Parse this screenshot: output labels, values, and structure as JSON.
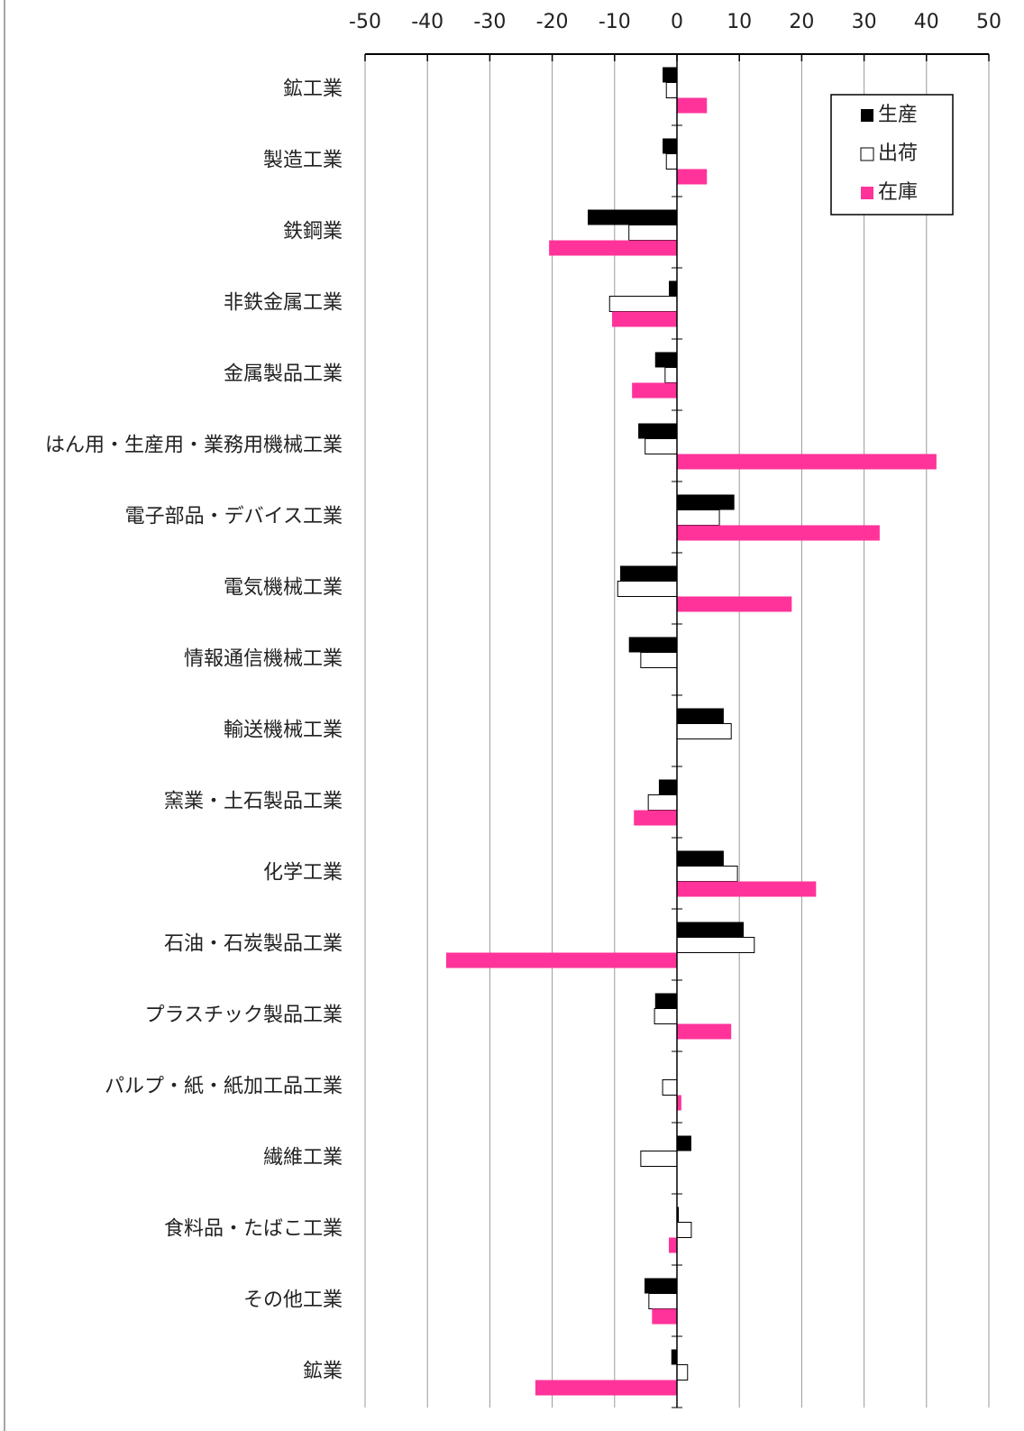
{
  "chart_data": {
    "type": "bar",
    "orientation": "horizontal",
    "categories": [
      "鉱工業",
      "製造工業",
      "鉄鋼業",
      "非鉄金属工業",
      "金属製品工業",
      "はん用・生産用・業務用機械工業",
      "電子部品・デバイス工業",
      "電気機械工業",
      "情報通信機械工業",
      "輸送機械工業",
      "窯業・土石製品工業",
      "化学工業",
      "石油・石炭製品工業",
      "プラスチック製品工業",
      "パルプ・紙・紙加工品工業",
      "繊維工業",
      "食料品・たばこ工業",
      "その他工業",
      "鉱業"
    ],
    "series": [
      {
        "name": "生産",
        "color": "#000000",
        "values": [
          -2.3,
          -2.3,
          -14.3,
          -1.3,
          -3.5,
          -6.2,
          9.2,
          -9.1,
          -7.7,
          7.5,
          -2.9,
          7.5,
          10.7,
          -3.5,
          0,
          2.3,
          0.3,
          -5.2,
          -0.9
        ]
      },
      {
        "name": "出荷",
        "color": "#ffffff",
        "values": [
          -1.7,
          -1.7,
          -7.7,
          -10.8,
          -1.9,
          -5.1,
          6.8,
          -9.5,
          -5.8,
          8.7,
          -4.6,
          9.7,
          12.4,
          -3.6,
          -2.3,
          -5.8,
          2.3,
          -4.5,
          1.7
        ]
      },
      {
        "name": "在庫",
        "color": "#ff3399",
        "values": [
          4.8,
          4.8,
          -20.5,
          -10.4,
          -7.2,
          41.6,
          32.5,
          18.4,
          0,
          0,
          -6.9,
          22.3,
          -37.0,
          8.7,
          0.7,
          0,
          -1.3,
          -4.0,
          -22.7
        ]
      }
    ],
    "xlim": [
      -50,
      50
    ],
    "xticks": [
      -50,
      -40,
      -30,
      -20,
      -10,
      0,
      10,
      20,
      30,
      40,
      50
    ],
    "grid": true,
    "legend": "top-right"
  }
}
